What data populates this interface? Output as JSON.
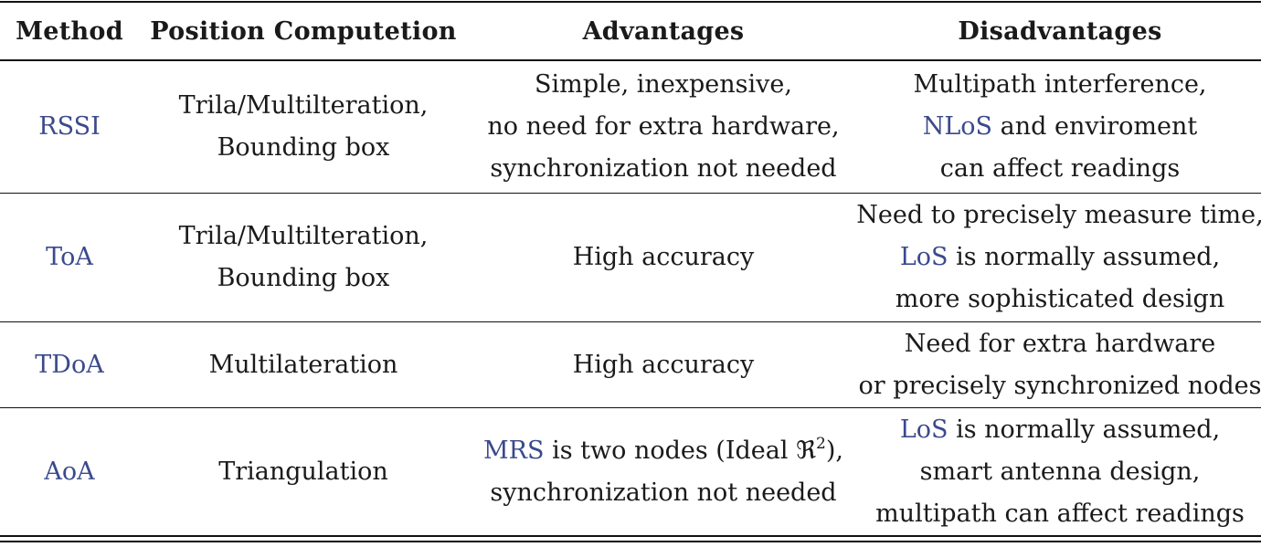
{
  "table": {
    "headers": {
      "method": "Method",
      "position": "Position Computetion",
      "advantages": "Advantages",
      "disadvantages": "Disadvantages"
    },
    "rows": [
      {
        "method": "RSSI",
        "position": [
          "Trila/Multilteration,",
          "Bounding box"
        ],
        "advantages": [
          "Simple, inexpensive,",
          "no need for extra hardware,",
          "synchronization not needed"
        ],
        "disadvantages": {
          "line1": "Multipath interference,",
          "line2_link": "NLoS",
          "line2_rest": " and enviroment",
          "line3": "can affect readings"
        }
      },
      {
        "method": "ToA",
        "position": [
          "Trila/Multilteration,",
          "Bounding box"
        ],
        "advantages": [
          "High accuracy"
        ],
        "disadvantages": {
          "line1": "Need to precisely measure time,",
          "line2_link": "LoS",
          "line2_rest": " is normally assumed,",
          "line3": "more sophisticated design"
        }
      },
      {
        "method": "TDoA",
        "position": [
          "Multilateration"
        ],
        "advantages": [
          "High accuracy"
        ],
        "disadvantages": {
          "line1": "Need for extra hardware",
          "line2": "or precisely synchronized nodes"
        }
      },
      {
        "method": "AoA",
        "position": [
          "Triangulation"
        ],
        "advantages": {
          "line1_link": "MRS",
          "line1_rest": " is two nodes (Ideal ",
          "line1_symbol": "ℜ",
          "line1_sup": "2",
          "line1_end": "),",
          "line2": "synchronization not needed"
        },
        "disadvantages": {
          "line1_link": "LoS",
          "line1_rest": " is normally assumed,",
          "line2": "smart antenna design,",
          "line3": "multipath can affect readings"
        }
      }
    ]
  }
}
